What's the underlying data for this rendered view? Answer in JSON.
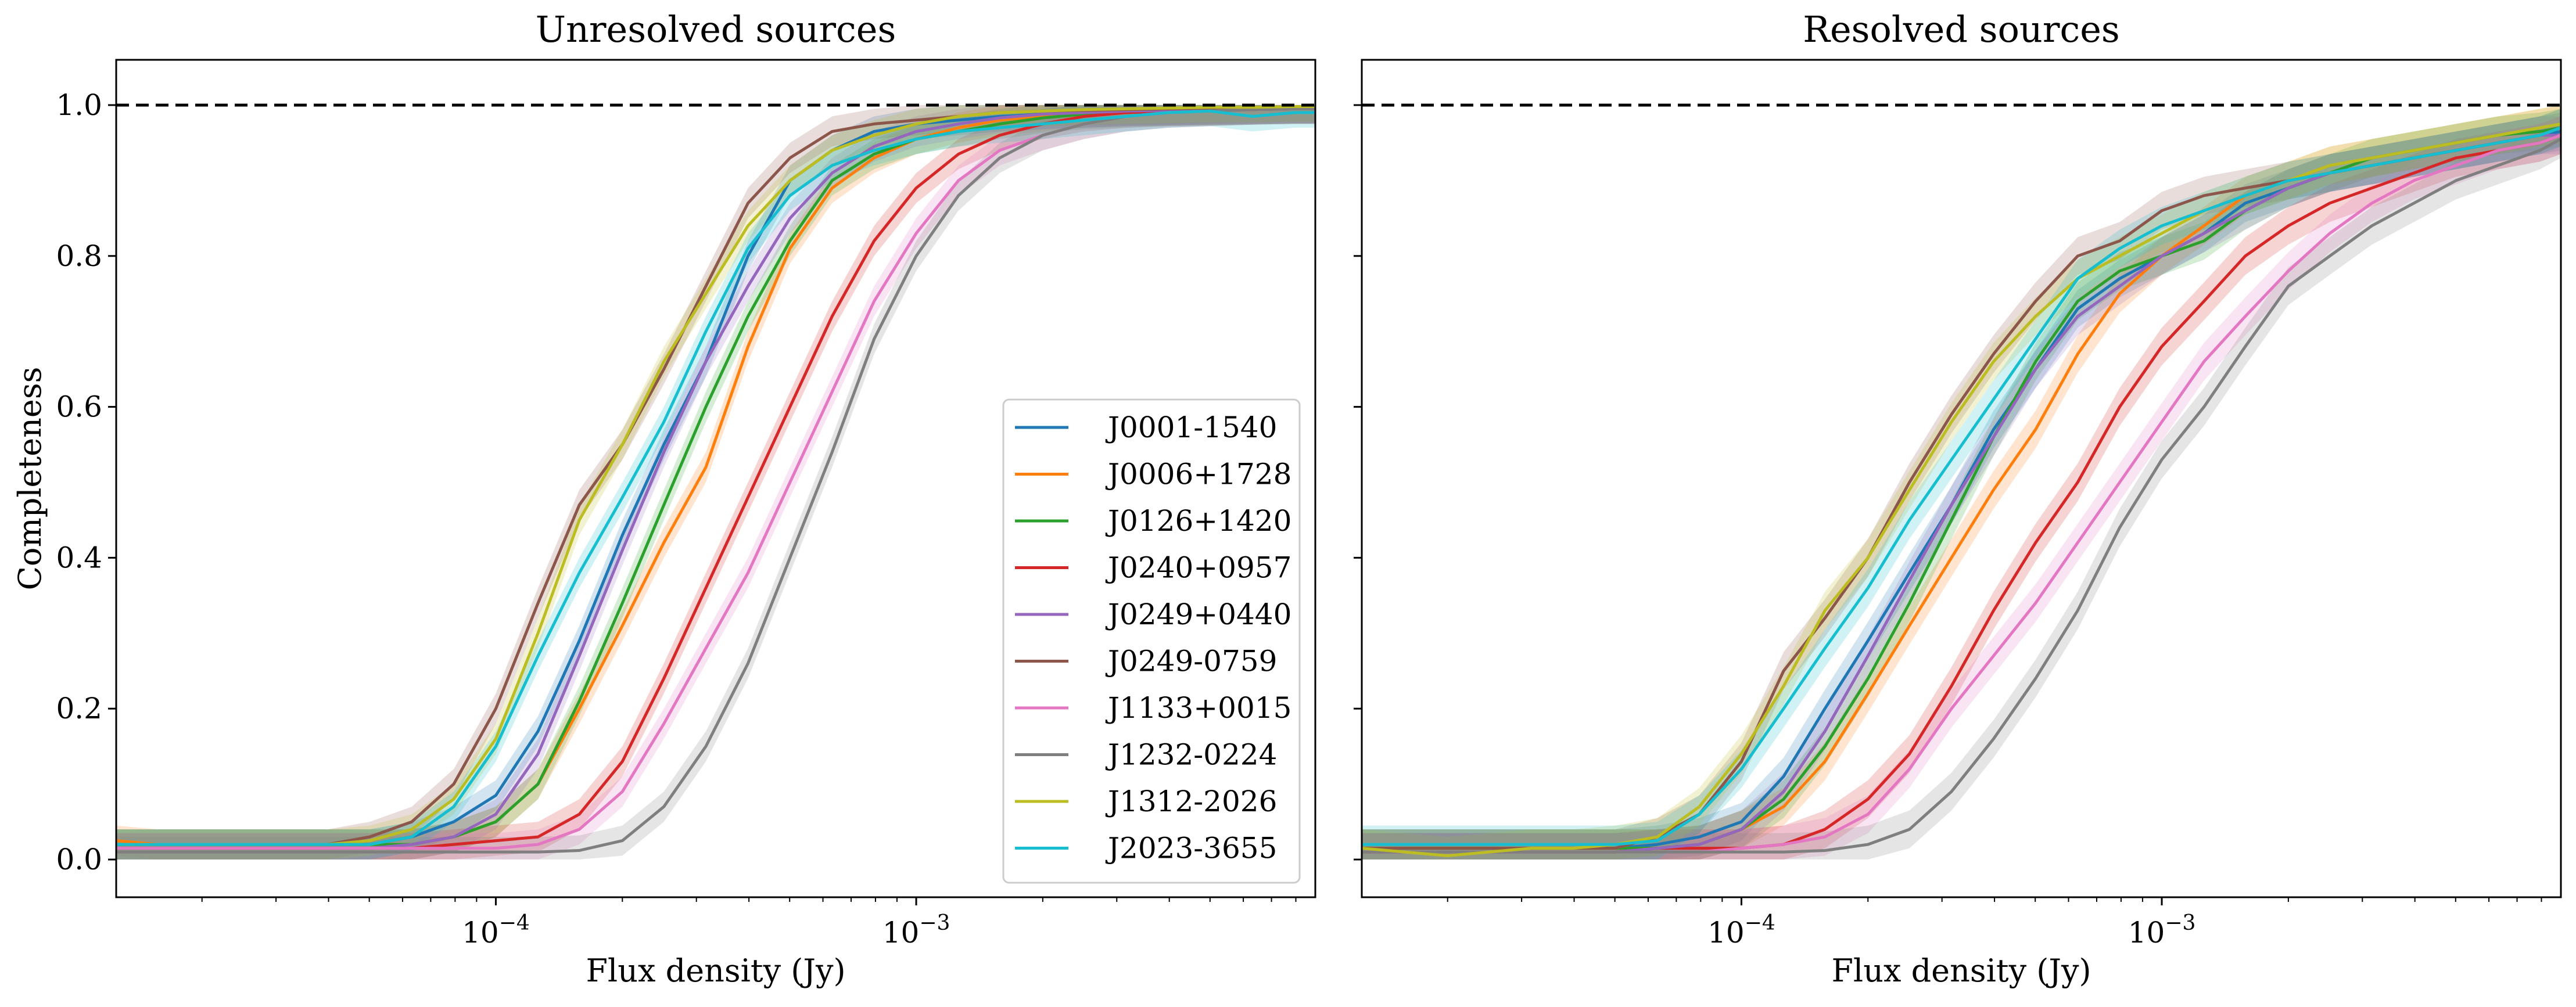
{
  "chart_data": [
    {
      "type": "line",
      "panel": "left",
      "title": "Unresolved sources",
      "xlabel": "Flux density (Jy)",
      "ylabel": "Completeness",
      "xscale": "log",
      "xlim": [
        1.25e-05,
        0.0089
      ],
      "ylim": [
        -0.05,
        1.06
      ],
      "xticks": [
        {
          "value": 0.0001,
          "base": "10",
          "exp": "−4"
        },
        {
          "value": 0.001,
          "base": "10",
          "exp": "−3"
        }
      ],
      "yticks": [
        {
          "value": 0.0,
          "label": "0.0"
        },
        {
          "value": 0.2,
          "label": "0.2"
        },
        {
          "value": 0.4,
          "label": "0.4"
        },
        {
          "value": 0.6,
          "label": "0.6"
        },
        {
          "value": 0.8,
          "label": "0.8"
        },
        {
          "value": 1.0,
          "label": "1.0"
        }
      ],
      "show_ytick_labels": true,
      "reference_line": {
        "y": 1.0,
        "style": "dashed"
      },
      "band_halfwidth": 0.02,
      "x": [
        1.25e-05,
        1.58e-05,
        2e-05,
        2.51e-05,
        3.16e-05,
        3.98e-05,
        5.01e-05,
        6.31e-05,
        7.94e-05,
        0.0001,
        0.000126,
        0.000158,
        0.0002,
        0.000251,
        0.000316,
        0.000398,
        0.000501,
        0.000631,
        0.000794,
        0.001,
        0.00126,
        0.00158,
        0.002,
        0.00251,
        0.00316,
        0.00398,
        0.00501,
        0.00631,
        0.00794,
        0.0089
      ],
      "series": [
        {
          "name": "J0001-1540",
          "color": "#1f77b4",
          "values": [
            0.02,
            0.02,
            0.02,
            0.02,
            0.02,
            0.02,
            0.02,
            0.03,
            0.05,
            0.085,
            0.17,
            0.29,
            0.43,
            0.55,
            0.66,
            0.8,
            0.9,
            0.94,
            0.965,
            0.975,
            0.98,
            0.985,
            0.988,
            0.99,
            0.992,
            0.993,
            0.994,
            0.995,
            0.996,
            0.996
          ]
        },
        {
          "name": "J0006+1728",
          "color": "#ff7f0e",
          "values": [
            0.025,
            0.02,
            0.02,
            0.02,
            0.02,
            0.02,
            0.02,
            0.02,
            0.03,
            0.05,
            0.1,
            0.2,
            0.31,
            0.42,
            0.52,
            0.68,
            0.81,
            0.89,
            0.93,
            0.955,
            0.97,
            0.98,
            0.985,
            0.99,
            0.992,
            0.993,
            0.994,
            0.995,
            0.996,
            0.996
          ]
        },
        {
          "name": "J0126+1420",
          "color": "#2ca02c",
          "values": [
            0.02,
            0.02,
            0.02,
            0.02,
            0.02,
            0.02,
            0.02,
            0.02,
            0.03,
            0.05,
            0.1,
            0.21,
            0.34,
            0.47,
            0.6,
            0.72,
            0.82,
            0.9,
            0.935,
            0.955,
            0.965,
            0.975,
            0.983,
            0.988,
            0.99,
            0.992,
            0.993,
            0.994,
            0.995,
            0.995
          ]
        },
        {
          "name": "J0240+0957",
          "color": "#d62728",
          "values": [
            0.015,
            0.015,
            0.015,
            0.015,
            0.015,
            0.015,
            0.015,
            0.015,
            0.02,
            0.025,
            0.03,
            0.06,
            0.13,
            0.24,
            0.36,
            0.48,
            0.6,
            0.72,
            0.82,
            0.89,
            0.935,
            0.96,
            0.975,
            0.985,
            0.99,
            0.992,
            0.993,
            0.994,
            0.995,
            0.995
          ]
        },
        {
          "name": "J0249+0440",
          "color": "#9467bd",
          "values": [
            0.015,
            0.015,
            0.015,
            0.015,
            0.015,
            0.015,
            0.015,
            0.02,
            0.03,
            0.06,
            0.14,
            0.27,
            0.41,
            0.54,
            0.66,
            0.76,
            0.85,
            0.91,
            0.945,
            0.965,
            0.975,
            0.983,
            0.988,
            0.99,
            0.992,
            0.993,
            0.994,
            0.995,
            0.996,
            0.996
          ]
        },
        {
          "name": "J0249-0759",
          "color": "#8c564b",
          "values": [
            0.02,
            0.02,
            0.02,
            0.02,
            0.02,
            0.02,
            0.03,
            0.05,
            0.1,
            0.2,
            0.34,
            0.47,
            0.55,
            0.65,
            0.76,
            0.87,
            0.93,
            0.965,
            0.975,
            0.98,
            0.985,
            0.99,
            0.992,
            0.993,
            0.994,
            0.995,
            0.996,
            0.997,
            0.998,
            0.998
          ]
        },
        {
          "name": "J1133+0015",
          "color": "#e377c2",
          "values": [
            0.015,
            0.015,
            0.015,
            0.015,
            0.015,
            0.015,
            0.015,
            0.015,
            0.015,
            0.015,
            0.02,
            0.04,
            0.09,
            0.18,
            0.28,
            0.38,
            0.5,
            0.62,
            0.74,
            0.83,
            0.9,
            0.94,
            0.96,
            0.975,
            0.985,
            0.99,
            0.992,
            0.994,
            0.995,
            0.995
          ]
        },
        {
          "name": "J1232-0224",
          "color": "#7f7f7f",
          "values": [
            0.01,
            0.01,
            0.01,
            0.01,
            0.01,
            0.01,
            0.01,
            0.01,
            0.01,
            0.01,
            0.01,
            0.012,
            0.025,
            0.07,
            0.15,
            0.26,
            0.4,
            0.54,
            0.69,
            0.8,
            0.88,
            0.93,
            0.96,
            0.975,
            0.985,
            0.99,
            0.992,
            0.994,
            0.995,
            0.995
          ]
        },
        {
          "name": "J1312-2026",
          "color": "#bcbd22",
          "values": [
            0.02,
            0.02,
            0.02,
            0.02,
            0.02,
            0.02,
            0.025,
            0.04,
            0.08,
            0.16,
            0.3,
            0.45,
            0.55,
            0.66,
            0.75,
            0.84,
            0.9,
            0.94,
            0.96,
            0.975,
            0.985,
            0.99,
            0.992,
            0.994,
            0.995,
            0.996,
            0.997,
            0.997,
            0.998,
            0.998
          ]
        },
        {
          "name": "J2023-3655",
          "color": "#17becf",
          "values": [
            0.02,
            0.02,
            0.02,
            0.02,
            0.02,
            0.02,
            0.02,
            0.03,
            0.07,
            0.15,
            0.27,
            0.38,
            0.48,
            0.58,
            0.7,
            0.81,
            0.88,
            0.92,
            0.94,
            0.955,
            0.965,
            0.97,
            0.975,
            0.98,
            0.985,
            0.99,
            0.992,
            0.985,
            0.99,
            0.99
          ]
        }
      ],
      "legend": {
        "placement": "lower-right"
      }
    },
    {
      "type": "line",
      "panel": "right",
      "title": "Resolved sources",
      "xlabel": "Flux density (Jy)",
      "ylabel": "",
      "xscale": "log",
      "xlim": [
        1.25e-05,
        0.0089
      ],
      "ylim": [
        -0.05,
        1.06
      ],
      "xticks": [
        {
          "value": 0.0001,
          "base": "10",
          "exp": "−4"
        },
        {
          "value": 0.001,
          "base": "10",
          "exp": "−3"
        }
      ],
      "yticks": [
        {
          "value": 0.0,
          "label": ""
        },
        {
          "value": 0.2,
          "label": ""
        },
        {
          "value": 0.4,
          "label": ""
        },
        {
          "value": 0.6,
          "label": ""
        },
        {
          "value": 0.8,
          "label": ""
        },
        {
          "value": 1.0,
          "label": ""
        }
      ],
      "show_ytick_labels": false,
      "reference_line": {
        "y": 1.0,
        "style": "dashed"
      },
      "band_halfwidth": 0.025,
      "x": [
        1.25e-05,
        1.58e-05,
        2e-05,
        2.51e-05,
        3.16e-05,
        3.98e-05,
        5.01e-05,
        6.31e-05,
        7.94e-05,
        0.0001,
        0.000126,
        0.000158,
        0.0002,
        0.000251,
        0.000316,
        0.000398,
        0.000501,
        0.000631,
        0.000794,
        0.001,
        0.00126,
        0.00158,
        0.002,
        0.00251,
        0.00316,
        0.00398,
        0.00501,
        0.00631,
        0.00794,
        0.0089
      ],
      "series": [
        {
          "name": "J0001-1540",
          "color": "#1f77b4",
          "values": [
            0.015,
            0.015,
            0.015,
            0.015,
            0.015,
            0.015,
            0.015,
            0.02,
            0.03,
            0.05,
            0.11,
            0.2,
            0.29,
            0.38,
            0.47,
            0.57,
            0.65,
            0.73,
            0.77,
            0.8,
            0.83,
            0.87,
            0.89,
            0.91,
            0.92,
            0.93,
            0.94,
            0.95,
            0.96,
            0.965
          ]
        },
        {
          "name": "J0006+1728",
          "color": "#ff7f0e",
          "values": [
            0.015,
            0.015,
            0.015,
            0.015,
            0.015,
            0.015,
            0.015,
            0.015,
            0.02,
            0.04,
            0.07,
            0.13,
            0.22,
            0.31,
            0.4,
            0.49,
            0.57,
            0.67,
            0.75,
            0.8,
            0.84,
            0.88,
            0.9,
            0.92,
            0.93,
            0.94,
            0.95,
            0.96,
            0.97,
            0.975
          ]
        },
        {
          "name": "J0126+1420",
          "color": "#2ca02c",
          "values": [
            0.015,
            0.015,
            0.015,
            0.015,
            0.015,
            0.015,
            0.015,
            0.015,
            0.02,
            0.04,
            0.08,
            0.15,
            0.24,
            0.34,
            0.45,
            0.56,
            0.66,
            0.74,
            0.78,
            0.8,
            0.82,
            0.86,
            0.89,
            0.91,
            0.93,
            0.94,
            0.95,
            0.96,
            0.965,
            0.97
          ]
        },
        {
          "name": "J0240+0957",
          "color": "#d62728",
          "values": [
            0.01,
            0.01,
            0.01,
            0.01,
            0.01,
            0.01,
            0.01,
            0.015,
            0.015,
            0.015,
            0.02,
            0.04,
            0.08,
            0.14,
            0.23,
            0.33,
            0.42,
            0.5,
            0.6,
            0.68,
            0.74,
            0.8,
            0.84,
            0.87,
            0.89,
            0.91,
            0.93,
            0.94,
            0.95,
            0.96
          ]
        },
        {
          "name": "J0249+0440",
          "color": "#9467bd",
          "values": [
            0.01,
            0.01,
            0.01,
            0.01,
            0.01,
            0.01,
            0.01,
            0.015,
            0.02,
            0.04,
            0.09,
            0.17,
            0.27,
            0.37,
            0.47,
            0.56,
            0.65,
            0.72,
            0.76,
            0.8,
            0.83,
            0.86,
            0.89,
            0.91,
            0.92,
            0.93,
            0.94,
            0.95,
            0.96,
            0.96
          ]
        },
        {
          "name": "J0249-0759",
          "color": "#8c564b",
          "values": [
            0.015,
            0.015,
            0.015,
            0.015,
            0.015,
            0.015,
            0.015,
            0.03,
            0.06,
            0.13,
            0.25,
            0.32,
            0.4,
            0.5,
            0.59,
            0.67,
            0.74,
            0.8,
            0.82,
            0.86,
            0.88,
            0.89,
            0.9,
            0.91,
            0.92,
            0.93,
            0.94,
            0.95,
            0.96,
            0.97
          ]
        },
        {
          "name": "J1133+0015",
          "color": "#e377c2",
          "values": [
            0.01,
            0.01,
            0.01,
            0.01,
            0.01,
            0.01,
            0.01,
            0.01,
            0.01,
            0.015,
            0.02,
            0.03,
            0.06,
            0.12,
            0.2,
            0.27,
            0.34,
            0.42,
            0.5,
            0.58,
            0.66,
            0.72,
            0.78,
            0.83,
            0.87,
            0.9,
            0.92,
            0.94,
            0.95,
            0.96
          ]
        },
        {
          "name": "J1232-0224",
          "color": "#7f7f7f",
          "values": [
            0.01,
            0.01,
            0.01,
            0.01,
            0.01,
            0.01,
            0.01,
            0.01,
            0.01,
            0.01,
            0.01,
            0.012,
            0.02,
            0.04,
            0.09,
            0.16,
            0.24,
            0.33,
            0.44,
            0.53,
            0.6,
            0.68,
            0.76,
            0.8,
            0.84,
            0.87,
            0.9,
            0.92,
            0.94,
            0.955
          ]
        },
        {
          "name": "J1312-2026",
          "color": "#bcbd22",
          "values": [
            0.015,
            0.01,
            0.005,
            0.01,
            0.015,
            0.015,
            0.02,
            0.03,
            0.07,
            0.14,
            0.23,
            0.33,
            0.4,
            0.49,
            0.58,
            0.66,
            0.72,
            0.77,
            0.8,
            0.83,
            0.86,
            0.88,
            0.9,
            0.92,
            0.93,
            0.94,
            0.95,
            0.96,
            0.97,
            0.975
          ]
        },
        {
          "name": "J2023-3655",
          "color": "#17becf",
          "values": [
            0.02,
            0.02,
            0.02,
            0.02,
            0.02,
            0.02,
            0.02,
            0.025,
            0.06,
            0.12,
            0.2,
            0.28,
            0.36,
            0.45,
            0.53,
            0.61,
            0.69,
            0.77,
            0.81,
            0.84,
            0.86,
            0.88,
            0.9,
            0.91,
            0.92,
            0.93,
            0.94,
            0.95,
            0.96,
            0.97
          ]
        }
      ],
      "legend": null
    }
  ]
}
